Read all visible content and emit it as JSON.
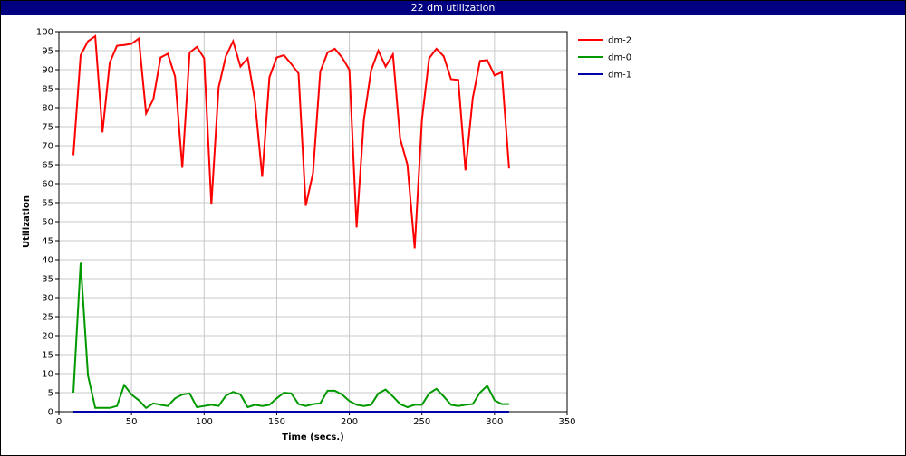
{
  "window": {
    "title": "22 dm utilization"
  },
  "chart_data": {
    "type": "line",
    "title": "22 dm utilization",
    "xlabel": "Time (secs.)",
    "ylabel": "Utilization",
    "xlim": [
      0,
      350
    ],
    "ylim": [
      0,
      100
    ],
    "xticks": [
      0,
      50,
      100,
      150,
      200,
      250,
      300,
      350
    ],
    "yticks": [
      0,
      5,
      10,
      15,
      20,
      25,
      30,
      35,
      40,
      45,
      50,
      55,
      60,
      65,
      70,
      75,
      80,
      85,
      90,
      95,
      100
    ],
    "grid": true,
    "legend_position": "right",
    "x": [
      10,
      15,
      20,
      25,
      30,
      35,
      40,
      45,
      50,
      55,
      60,
      65,
      70,
      75,
      80,
      85,
      90,
      95,
      100,
      105,
      110,
      115,
      120,
      125,
      130,
      135,
      140,
      145,
      150,
      155,
      160,
      165,
      170,
      175,
      180,
      185,
      190,
      195,
      200,
      205,
      210,
      215,
      220,
      225,
      230,
      235,
      240,
      245,
      250,
      255,
      260,
      265,
      270,
      275,
      280,
      285,
      290,
      295,
      300,
      305,
      310
    ],
    "series": [
      {
        "name": "dm-2",
        "color": "#ff0000",
        "values": [
          67.5,
          93.8,
          97.5,
          98.8,
          73.5,
          91.8,
          96.3,
          96.5,
          96.8,
          98.2,
          78.5,
          82.2,
          93.2,
          94.2,
          88.2,
          64.2,
          94.5,
          96.0,
          93.0,
          54.5,
          85.3,
          93.5,
          97.5,
          90.8,
          93.0,
          81.8,
          61.8,
          88.0,
          93.2,
          93.8,
          91.5,
          89.0,
          54.2,
          62.8,
          89.5,
          94.5,
          95.5,
          93.2,
          90.0,
          48.5,
          76.8,
          89.8,
          95.0,
          90.8,
          94.0,
          71.8,
          65.0,
          43.0,
          76.8,
          93.0,
          95.5,
          93.5,
          87.5,
          87.3,
          63.5,
          82.5,
          92.3,
          92.5,
          88.5,
          89.3,
          64.0
        ]
      },
      {
        "name": "dm-0",
        "color": "#009900",
        "values": [
          5.0,
          39.2,
          9.5,
          1.0,
          1.0,
          1.0,
          1.5,
          7.0,
          4.5,
          3.0,
          1.0,
          2.2,
          1.8,
          1.5,
          3.5,
          4.5,
          4.8,
          1.2,
          1.5,
          1.8,
          1.5,
          4.2,
          5.2,
          4.5,
          1.2,
          1.8,
          1.5,
          1.8,
          3.5,
          5.0,
          4.8,
          2.0,
          1.5,
          2.0,
          2.2,
          5.5,
          5.5,
          4.5,
          2.8,
          1.8,
          1.5,
          1.8,
          4.8,
          5.8,
          4.0,
          2.0,
          1.2,
          1.8,
          1.8,
          4.8,
          6.0,
          4.0,
          1.8,
          1.5,
          1.8,
          2.0,
          5.0,
          6.8,
          3.0,
          2.0,
          2.0
        ]
      },
      {
        "name": "dm-1",
        "color": "#0000aa",
        "values": [
          0,
          0,
          0,
          0,
          0,
          0,
          0,
          0,
          0,
          0,
          0,
          0,
          0,
          0,
          0,
          0,
          0,
          0,
          0,
          0,
          0,
          0,
          0,
          0,
          0,
          0,
          0,
          0,
          0,
          0,
          0,
          0,
          0,
          0,
          0,
          0,
          0,
          0,
          0,
          0,
          0,
          0,
          0,
          0,
          0,
          0,
          0,
          0,
          0,
          0,
          0,
          0,
          0,
          0,
          0,
          0,
          0,
          0,
          0,
          0,
          0
        ]
      }
    ]
  }
}
